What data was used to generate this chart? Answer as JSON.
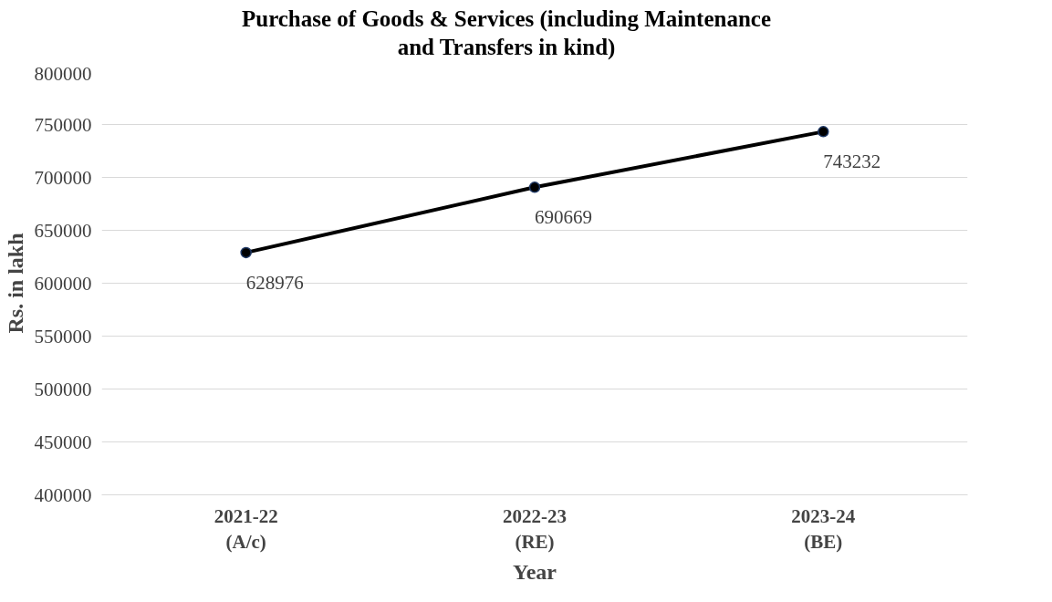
{
  "chart_data": {
    "type": "line",
    "title": "Purchase of Goods & Services (including Maintenance\nand Transfers in kind)",
    "xlabel": "Year",
    "ylabel": "Rs. in lakh",
    "categories": [
      "2021-22\n(A/c)",
      "2022-23\n(RE)",
      "2023-24\n(BE)"
    ],
    "series": [
      {
        "color": "#000000",
        "values": [
          628976,
          690669,
          743232
        ]
      }
    ],
    "ylim": [
      400000,
      800000
    ],
    "yticks": [
      400000,
      450000,
      500000,
      550000,
      600000,
      650000,
      700000,
      750000,
      800000
    ],
    "grid": "y",
    "marker": "circle",
    "line_style": "solid",
    "data_labels": true
  }
}
